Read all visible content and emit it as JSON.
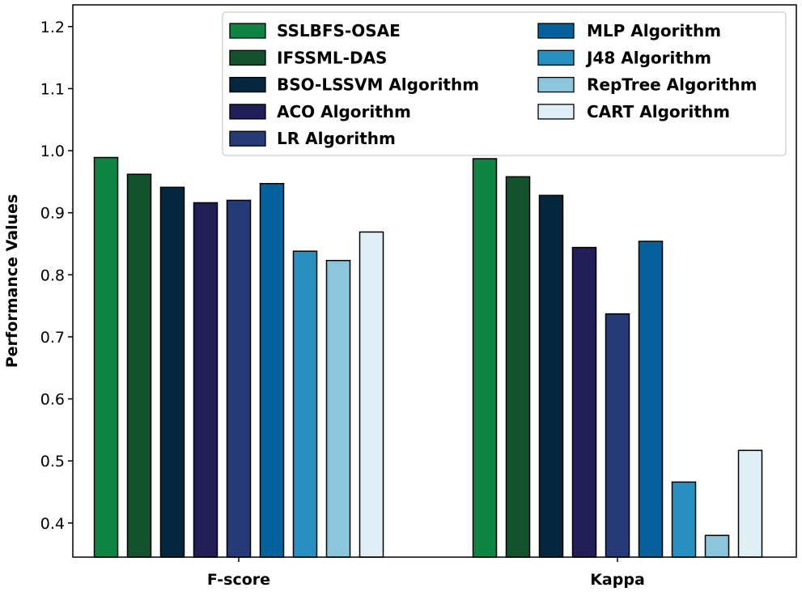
{
  "chart_data": {
    "type": "bar",
    "title": "",
    "xlabel": "",
    "ylabel": "Performance Values",
    "categories": [
      "F-score",
      "Kappa"
    ],
    "ylim": [
      0.345,
      1.235
    ],
    "yticks": [
      "0.4",
      "0.5",
      "0.6",
      "0.7",
      "0.8",
      "0.9",
      "1.0",
      "1.1",
      "1.2"
    ],
    "grid": false,
    "legend_position": "top-right",
    "series": [
      {
        "name": "SSLBFS-OSAE",
        "color": "#0e8442",
        "values": [
          0.989,
          0.987
        ]
      },
      {
        "name": "IFSSML-DAS",
        "color": "#12522c",
        "values": [
          0.962,
          0.958
        ]
      },
      {
        "name": "BSO-LSSVM Algorithm",
        "color": "#04263f",
        "values": [
          0.941,
          0.928
        ]
      },
      {
        "name": "ACO Algorithm",
        "color": "#221e58",
        "values": [
          0.916,
          0.844
        ]
      },
      {
        "name": "LR Algorithm",
        "color": "#273a78",
        "values": [
          0.92,
          0.737
        ]
      },
      {
        "name": "MLP Algorithm",
        "color": "#05619b",
        "values": [
          0.947,
          0.854
        ]
      },
      {
        "name": "J48 Algorithm",
        "color": "#2890c0",
        "values": [
          0.838,
          0.466
        ]
      },
      {
        "name": "RepTree Algorithm",
        "color": "#8cc6dd",
        "values": [
          0.823,
          0.38
        ]
      },
      {
        "name": "CART Algorithm",
        "color": "#e0eef5",
        "values": [
          0.869,
          0.517
        ]
      }
    ]
  }
}
